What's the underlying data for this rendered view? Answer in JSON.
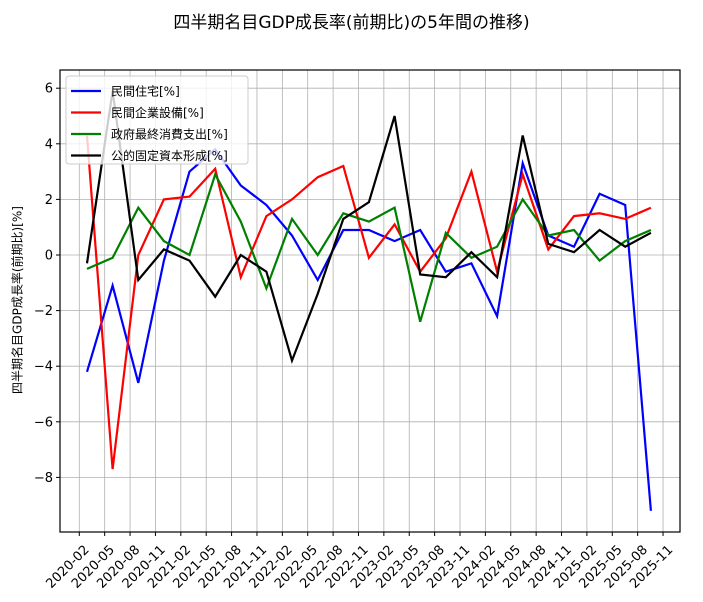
{
  "chart_data": {
    "type": "line",
    "title": "四半期名目GDP成長率(前期比)の5年間の推移)",
    "xlabel": "",
    "ylabel": "四半期名目GDP成長率(前期比)[%]",
    "ylim": [
      -10,
      6.6
    ],
    "yticks": [
      -8,
      -6,
      -4,
      -2,
      0,
      2,
      4,
      6
    ],
    "xtick_labels": [
      "2020-02",
      "2020-05",
      "2020-08",
      "2020-11",
      "2021-02",
      "2021-05",
      "2021-08",
      "2021-11",
      "2022-02",
      "2022-05",
      "2022-08",
      "2022-11",
      "2023-02",
      "2023-05",
      "2023-08",
      "2023-11",
      "2024-02",
      "2024-05",
      "2024-08",
      "2024-11",
      "2025-02",
      "2025-05",
      "2025-08",
      "2025-11"
    ],
    "grid": true,
    "legend_position": "upper left",
    "x": [
      "2020-Q1",
      "2020-Q2",
      "2020-Q3",
      "2020-Q4",
      "2021-Q1",
      "2021-Q2",
      "2021-Q3",
      "2021-Q4",
      "2022-Q1",
      "2022-Q2",
      "2022-Q3",
      "2022-Q4",
      "2023-Q1",
      "2023-Q2",
      "2023-Q3",
      "2023-Q4",
      "2024-Q1",
      "2024-Q2",
      "2024-Q3",
      "2024-Q4",
      "2025-Q1",
      "2025-Q2",
      "2025-Q3"
    ],
    "series": [
      {
        "name": "民間住宅[%]",
        "color": "#0000ff",
        "values": [
          -4.2,
          -1.1,
          -4.6,
          -0.2,
          3.0,
          3.8,
          2.5,
          1.8,
          0.7,
          -0.9,
          0.9,
          0.9,
          0.5,
          0.9,
          -0.6,
          -0.3,
          -2.2,
          3.3,
          0.7,
          0.3,
          2.2,
          1.8,
          -9.2
        ]
      },
      {
        "name": "民間企業設備[%]",
        "color": "#ff0000",
        "values": [
          4.3,
          -7.7,
          0.0,
          2.0,
          2.1,
          3.1,
          -0.8,
          1.4,
          2.0,
          2.8,
          3.2,
          -0.1,
          1.1,
          -0.6,
          0.6,
          3.0,
          -0.6,
          2.9,
          0.2,
          1.4,
          1.5,
          1.3,
          1.7
        ]
      },
      {
        "name": "政府最終消費支出[%]",
        "color": "#008000",
        "values": [
          -0.5,
          -0.1,
          1.7,
          0.5,
          0.0,
          2.9,
          1.2,
          -1.2,
          1.3,
          0.0,
          1.5,
          1.2,
          1.7,
          -2.4,
          0.8,
          -0.1,
          0.3,
          2.0,
          0.7,
          0.9,
          -0.2,
          0.5,
          0.9
        ]
      },
      {
        "name": "公的固定資本形成[%]",
        "color": "#000000",
        "values": [
          -0.3,
          5.9,
          -0.9,
          0.2,
          -0.2,
          -1.5,
          0.0,
          -0.6,
          -3.8,
          -1.4,
          1.3,
          1.9,
          5.0,
          -0.7,
          -0.8,
          0.1,
          -0.8,
          4.3,
          0.4,
          0.1,
          0.9,
          0.3,
          0.8
        ]
      }
    ]
  }
}
